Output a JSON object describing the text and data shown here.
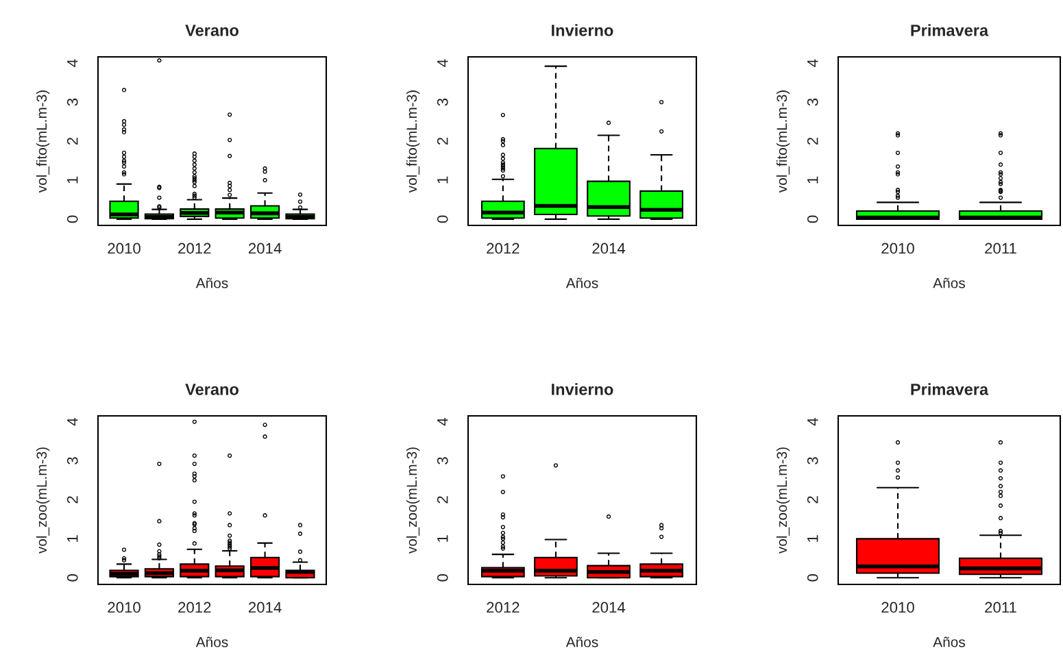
{
  "chart_data": [
    {
      "type": "box",
      "title": "Verano",
      "xlabel": "Años",
      "ylabel": "vol_fito(mL.m-3)",
      "color": "#00ff00",
      "line_style": "dashed",
      "categories": [
        "2010",
        null,
        "2012",
        null,
        "2014",
        null
      ],
      "ylim": [
        -0.16,
        4.16
      ],
      "yticks": [
        0,
        1,
        2,
        3,
        4
      ],
      "boxes": [
        {
          "low": 0,
          "q1": 0.03,
          "median": 0.12,
          "q3": 0.46,
          "high": 0.9,
          "outliers": [
            1.15,
            1.2,
            1.35,
            1.45,
            1.5,
            1.6,
            1.7,
            2.23,
            2.3,
            2.42,
            2.51,
            3.31
          ]
        },
        {
          "low": 0,
          "q1": 0.01,
          "median": 0.06,
          "q3": 0.13,
          "high": 0.25,
          "outliers": [
            0.3,
            0.33,
            0.55,
            0.8,
            0.83,
            4.07
          ]
        },
        {
          "low": 0,
          "q1": 0.07,
          "median": 0.16,
          "q3": 0.26,
          "high": 0.5,
          "outliers": [
            0.55,
            0.6,
            0.65,
            0.85,
            0.95,
            1.0,
            1.05,
            1.1,
            1.2,
            1.3,
            1.4,
            1.5,
            1.6,
            1.68
          ]
        },
        {
          "low": 0,
          "q1": 0.03,
          "median": 0.17,
          "q3": 0.26,
          "high": 0.54,
          "outliers": [
            0.62,
            0.75,
            0.85,
            0.93,
            1.62,
            2.03,
            2.68
          ]
        },
        {
          "low": 0,
          "q1": 0.03,
          "median": 0.15,
          "q3": 0.34,
          "high": 0.67,
          "outliers": [
            1.0,
            1.22,
            1.3
          ]
        },
        {
          "low": 0,
          "q1": 0.01,
          "median": 0.06,
          "q3": 0.13,
          "high": 0.25,
          "outliers": [
            0.3,
            0.45,
            0.63
          ]
        }
      ]
    },
    {
      "type": "box",
      "title": "Invierno",
      "xlabel": "Años",
      "ylabel": "vol_fito(mL.m-3)",
      "color": "#00ff00",
      "line_style": "dashed",
      "categories": [
        "2012",
        null,
        "2014",
        null
      ],
      "ylim": [
        -0.16,
        4.16
      ],
      "yticks": [
        0,
        1,
        2,
        3,
        4
      ],
      "boxes": [
        {
          "low": 0,
          "q1": 0.03,
          "median": 0.17,
          "q3": 0.46,
          "high": 1.02,
          "outliers": [
            1.1,
            1.25,
            1.3,
            1.35,
            1.4,
            1.45,
            1.55,
            1.65,
            1.9,
            2.0,
            2.05,
            2.67
          ]
        },
        {
          "low": 0,
          "q1": 0.12,
          "median": 0.34,
          "q3": 1.81,
          "high": 3.92
        },
        {
          "low": 0,
          "q1": 0.08,
          "median": 0.31,
          "q3": 0.97,
          "high": 2.15,
          "outliers": [
            2.47
          ]
        },
        {
          "low": 0,
          "q1": 0.03,
          "median": 0.24,
          "q3": 0.72,
          "high": 1.65,
          "outliers": [
            2.25,
            3.0
          ]
        }
      ]
    },
    {
      "type": "box",
      "title": "Primavera",
      "xlabel": "Años",
      "ylabel": "vol_fito(mL.m-3)",
      "color": "#00ff00",
      "line_style": "dashed",
      "categories": [
        "2010",
        "2011"
      ],
      "ylim": [
        -0.16,
        4.16
      ],
      "yticks": [
        0,
        1,
        2,
        3,
        4
      ],
      "boxes": [
        {
          "low": 0,
          "q1": 0.0,
          "median": 0.04,
          "q3": 0.21,
          "high": 0.43,
          "outliers": [
            0.55,
            0.6,
            0.7,
            0.75,
            1.15,
            1.2,
            1.35,
            1.7,
            2.15,
            2.2
          ]
        },
        {
          "low": 0,
          "q1": 0.0,
          "median": 0.04,
          "q3": 0.21,
          "high": 0.43,
          "outliers": [
            0.55,
            0.7,
            0.72,
            0.75,
            0.9,
            0.95,
            1.05,
            1.15,
            1.2,
            1.4,
            1.7,
            2.15,
            2.2
          ]
        }
      ]
    },
    {
      "type": "box",
      "title": "Verano",
      "xlabel": "Años",
      "ylabel": "vol_zoo(mL.m-3)",
      "color": "#ff0000",
      "line_style": "dashed",
      "categories": [
        "2010",
        null,
        "2012",
        null,
        "2014",
        null
      ],
      "ylim": [
        -0.17,
        4.15
      ],
      "yticks": [
        0,
        1,
        2,
        3,
        4
      ],
      "boxes": [
        {
          "low": 0,
          "q1": 0.03,
          "median": 0.1,
          "q3": 0.19,
          "high": 0.35,
          "outliers": [
            0.45,
            0.5,
            0.72
          ]
        },
        {
          "low": 0,
          "q1": 0.03,
          "median": 0.12,
          "q3": 0.23,
          "high": 0.47,
          "outliers": [
            0.5,
            0.55,
            0.6,
            0.68,
            0.85,
            1.45,
            2.92
          ]
        },
        {
          "low": 0,
          "q1": 0.03,
          "median": 0.18,
          "q3": 0.35,
          "high": 0.73,
          "outliers": [
            0.88,
            1.2,
            1.27,
            1.37,
            1.4,
            1.6,
            1.65,
            1.95,
            2.5,
            2.6,
            2.67,
            2.92,
            3.13,
            4.0
          ]
        },
        {
          "low": 0,
          "q1": 0.03,
          "median": 0.19,
          "q3": 0.3,
          "high": 0.69,
          "outliers": [
            0.75,
            0.8,
            0.85,
            0.9,
            0.95,
            1.08,
            1.35,
            1.65,
            3.13
          ]
        },
        {
          "low": 0,
          "q1": 0.03,
          "median": 0.25,
          "q3": 0.52,
          "high": 0.89,
          "outliers": [
            1.6,
            3.62,
            3.92
          ]
        },
        {
          "low": 0,
          "q1": 0.0,
          "median": 0.15,
          "q3": 0.19,
          "high": 0.4,
          "outliers": [
            0.45,
            0.67,
            1.13,
            1.35
          ]
        }
      ]
    },
    {
      "type": "box",
      "title": "Invierno",
      "xlabel": "Años",
      "ylabel": "vol_zoo(mL.m-3)",
      "color": "#ff0000",
      "line_style": "dashed",
      "categories": [
        "2012",
        null,
        "2014",
        null
      ],
      "ylim": [
        -0.17,
        4.15
      ],
      "yticks": [
        0,
        1,
        2,
        3,
        4
      ],
      "boxes": [
        {
          "low": 0,
          "q1": 0.03,
          "median": 0.18,
          "q3": 0.26,
          "high": 0.6,
          "outliers": [
            0.75,
            0.8,
            0.9,
            1.0,
            1.05,
            1.15,
            1.3,
            1.55,
            1.62,
            2.2,
            2.6
          ]
        },
        {
          "low": 0,
          "q1": 0.05,
          "median": 0.18,
          "q3": 0.52,
          "high": 0.98,
          "outliers": [
            2.88
          ]
        },
        {
          "low": 0,
          "q1": 0.0,
          "median": 0.15,
          "q3": 0.31,
          "high": 0.63,
          "outliers": [
            1.57
          ]
        },
        {
          "low": 0,
          "q1": 0.03,
          "median": 0.18,
          "q3": 0.35,
          "high": 0.63,
          "outliers": [
            1.05,
            1.27,
            1.35
          ]
        }
      ]
    },
    {
      "type": "box",
      "title": "Primavera",
      "xlabel": "Años",
      "ylabel": "vol_zoo(mL.m-3)",
      "color": "#ff0000",
      "line_style": "dashed",
      "categories": [
        "2010",
        "2011"
      ],
      "ylim": [
        -0.17,
        4.15
      ],
      "yticks": [
        0,
        1,
        2,
        3,
        4
      ],
      "boxes": [
        {
          "low": 0,
          "q1": 0.12,
          "median": 0.29,
          "q3": 1.0,
          "high": 2.31,
          "outliers": [
            2.57,
            2.75,
            2.95,
            3.47
          ]
        },
        {
          "low": 0,
          "q1": 0.09,
          "median": 0.24,
          "q3": 0.5,
          "high": 1.09,
          "outliers": [
            1.15,
            1.2,
            1.53,
            1.85,
            2.1,
            2.2,
            2.35,
            2.55,
            2.75,
            2.95,
            3.47
          ]
        }
      ]
    }
  ]
}
